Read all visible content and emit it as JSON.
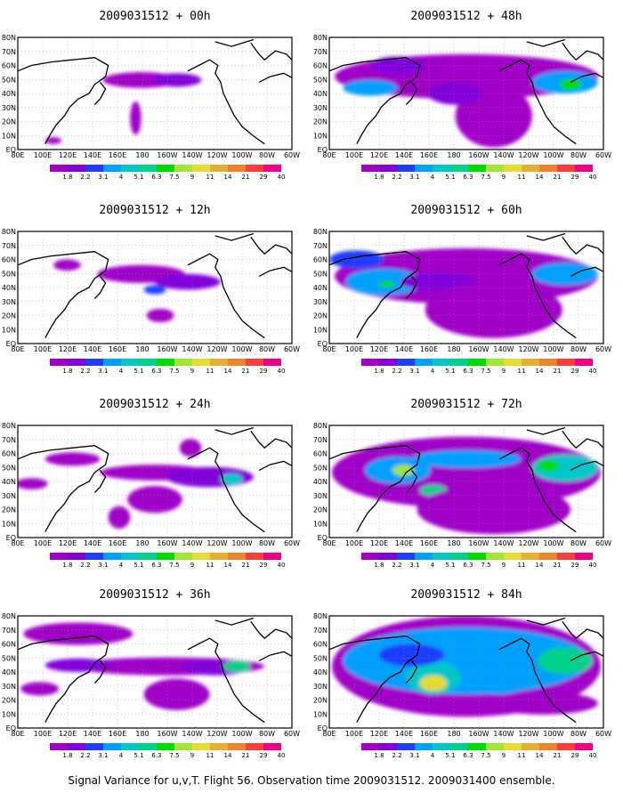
{
  "caption": "Signal Variance for u,v,T. Flight 56. Observation time 2009031512. 2009031400 ensemble.",
  "lon_labels": [
    "80E",
    "100E",
    "120E",
    "140E",
    "160E",
    "180",
    "160W",
    "140W",
    "120W",
    "100W",
    "80W",
    "60W"
  ],
  "lat_labels": [
    "80N",
    "70N",
    "60N",
    "50N",
    "40N",
    "30N",
    "20N",
    "10N",
    "EQ"
  ],
  "colorbar": {
    "labels": [
      "1.8",
      "2.2",
      "3.1",
      "4",
      "5.1",
      "6.3",
      "7.5",
      "9",
      "11",
      "14",
      "21",
      "29",
      "40"
    ],
    "colors": [
      "#a000c8",
      "#8200dc",
      "#1e3cff",
      "#00a0ff",
      "#00c8c8",
      "#00d28c",
      "#00dc00",
      "#a0e632",
      "#e6dc32",
      "#e6af2d",
      "#f08228",
      "#fa3c3c",
      "#f00082"
    ]
  },
  "panels": [
    {
      "title": "2009031512 + 00h",
      "col": 0,
      "row": 0
    },
    {
      "title": "2009031512 + 12h",
      "col": 0,
      "row": 1
    },
    {
      "title": "2009031512 + 24h",
      "col": 0,
      "row": 2
    },
    {
      "title": "2009031512 + 36h",
      "col": 0,
      "row": 3
    },
    {
      "title": "2009031512 + 48h",
      "col": 1,
      "row": 0
    },
    {
      "title": "2009031512 + 60h",
      "col": 1,
      "row": 1
    },
    {
      "title": "2009031512 + 72h",
      "col": 1,
      "row": 2
    },
    {
      "title": "2009031512 + 84h",
      "col": 1,
      "row": 3
    }
  ]
}
